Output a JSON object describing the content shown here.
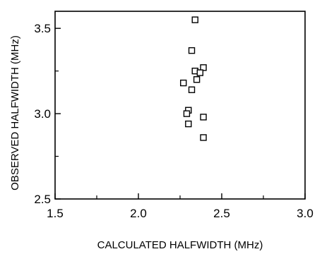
{
  "chart_data": {
    "type": "scatter",
    "title": "",
    "xlabel": "CALCULATED HALFWIDTH (MHz)",
    "ylabel": "OBSERVED HALFWIDTH (MHz)",
    "xlim": [
      1.5,
      3.0
    ],
    "ylim": [
      2.5,
      3.6
    ],
    "xticks": [
      1.5,
      2.0,
      2.5,
      3.0
    ],
    "yticks": [
      2.5,
      3.0,
      3.5
    ],
    "xtick_labels": [
      "1.5",
      "2.0",
      "2.5",
      "3.0"
    ],
    "ytick_labels": [
      "2.5",
      "3.0",
      "3.5"
    ],
    "marker": "open-square",
    "grid": false,
    "points": [
      {
        "x": 2.34,
        "y": 3.55
      },
      {
        "x": 2.32,
        "y": 3.37
      },
      {
        "x": 2.39,
        "y": 3.27
      },
      {
        "x": 2.34,
        "y": 3.25
      },
      {
        "x": 2.37,
        "y": 3.24
      },
      {
        "x": 2.35,
        "y": 3.2
      },
      {
        "x": 2.27,
        "y": 3.18
      },
      {
        "x": 2.32,
        "y": 3.14
      },
      {
        "x": 2.3,
        "y": 3.02
      },
      {
        "x": 2.29,
        "y": 3.0
      },
      {
        "x": 2.39,
        "y": 2.98
      },
      {
        "x": 2.3,
        "y": 2.94
      },
      {
        "x": 2.39,
        "y": 2.86
      }
    ]
  }
}
